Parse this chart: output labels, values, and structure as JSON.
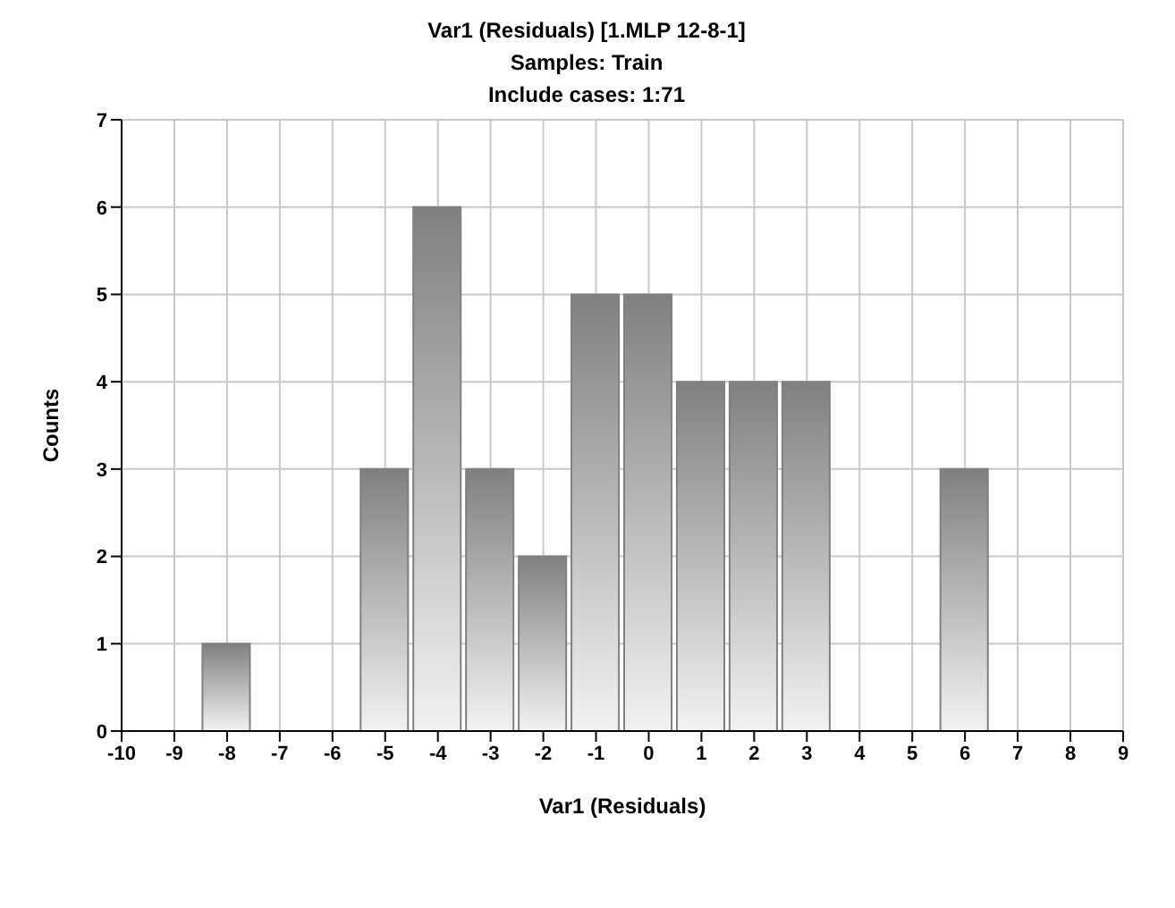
{
  "chart_data": {
    "type": "histogram",
    "title": "Var1 (Residuals) [1.MLP 12-8-1]",
    "subtitle": "Samples: Train",
    "annotations": [
      "Include cases: 1:71"
    ],
    "xlabel": "Var1 (Residuals)",
    "ylabel": "Counts",
    "bins": [
      -8.5,
      -7.5,
      -6.5,
      -5.5,
      -4.5,
      -3.5,
      -2.5,
      -1.5,
      -0.5,
      0.5,
      1.5,
      2.5,
      3.5,
      4.5,
      5.5,
      6.5
    ],
    "values": [
      1,
      null,
      null,
      3,
      6,
      3,
      2,
      5,
      5,
      4,
      4,
      4,
      null,
      null,
      3
    ],
    "color": "#808080",
    "xlim": [
      -10,
      9
    ],
    "xticks": [
      -10,
      -9,
      -8,
      -7,
      -6,
      -5,
      -4,
      -3,
      -2,
      -1,
      0,
      1,
      2,
      3,
      4,
      5,
      6,
      7,
      8,
      9
    ],
    "ylim": [
      0,
      7
    ],
    "yticks": [
      0,
      1,
      2,
      3,
      4,
      5,
      6,
      7
    ],
    "grid": true
  }
}
